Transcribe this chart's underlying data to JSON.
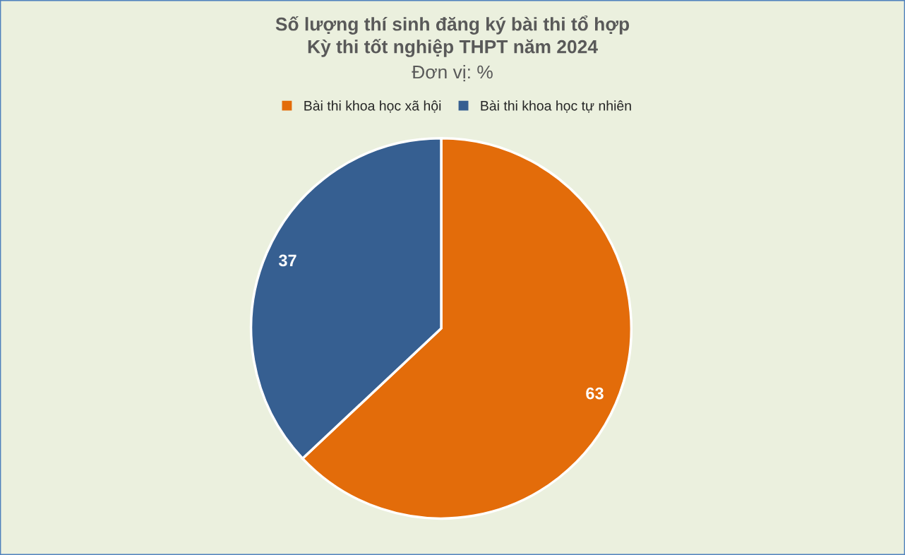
{
  "chart_data": {
    "type": "pie",
    "title": "Số lượng thí sinh đăng ký bài thi tổ hợp\nKỳ thi tốt nghiệp THPT năm 2024",
    "subtitle": "Đơn vị: %",
    "categories": [
      "Bài thi khoa học xã hội",
      "Bài thi khoa học tự nhiên"
    ],
    "values": [
      63,
      37
    ],
    "colors": [
      "#e36c0a",
      "#365f91"
    ],
    "data_labels": true,
    "legend": "top"
  }
}
